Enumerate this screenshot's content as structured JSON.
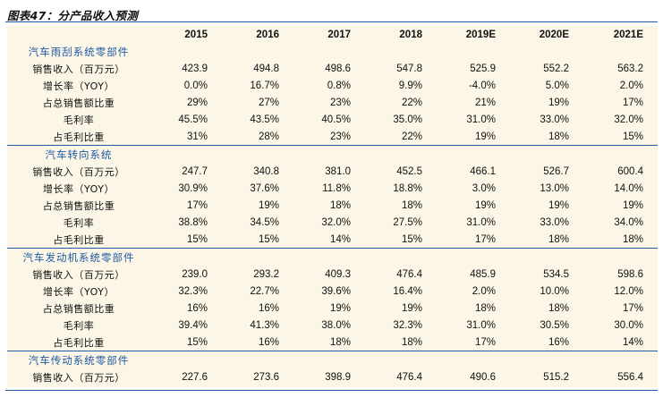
{
  "title": "图表47：分产品收入预测",
  "years": [
    "2015",
    "2016",
    "2017",
    "2018",
    "2019E",
    "2020E",
    "2021E"
  ],
  "sections": [
    {
      "name": "汽车雨刮系统零部件",
      "rows": [
        {
          "label": "销售收入（百万元）",
          "values": [
            "423.9",
            "494.8",
            "498.6",
            "547.8",
            "525.9",
            "552.2",
            "563.2"
          ]
        },
        {
          "label": "增长率（YOY）",
          "values": [
            "0.0%",
            "16.7%",
            "0.8%",
            "9.9%",
            "-4.0%",
            "5.0%",
            "2.0%"
          ]
        },
        {
          "label": "占总销售额比重",
          "values": [
            "29%",
            "27%",
            "23%",
            "22%",
            "21%",
            "19%",
            "17%"
          ]
        },
        {
          "label": "毛利率",
          "values": [
            "45.5%",
            "43.5%",
            "40.5%",
            "35.0%",
            "31.0%",
            "33.0%",
            "32.0%"
          ]
        },
        {
          "label": "占毛利比重",
          "values": [
            "31%",
            "28%",
            "23%",
            "22%",
            "19%",
            "18%",
            "15%"
          ]
        }
      ]
    },
    {
      "name": "汽车转向系统",
      "rows": [
        {
          "label": "销售收入（百万元）",
          "values": [
            "247.7",
            "340.8",
            "381.0",
            "452.5",
            "466.1",
            "526.7",
            "600.4"
          ]
        },
        {
          "label": "增长率（YOY）",
          "values": [
            "30.9%",
            "37.6%",
            "11.8%",
            "18.8%",
            "3.0%",
            "13.0%",
            "14.0%"
          ]
        },
        {
          "label": "占总销售额比重",
          "values": [
            "17%",
            "19%",
            "18%",
            "18%",
            "19%",
            "19%",
            "19%"
          ]
        },
        {
          "label": "毛利率",
          "values": [
            "38.8%",
            "34.5%",
            "32.0%",
            "27.5%",
            "31.0%",
            "33.0%",
            "34.0%"
          ]
        },
        {
          "label": "占毛利比重",
          "values": [
            "15%",
            "15%",
            "14%",
            "15%",
            "17%",
            "18%",
            "18%"
          ]
        }
      ]
    },
    {
      "name": "汽车发动机系统零部件",
      "rows": [
        {
          "label": "销售收入（百万元）",
          "values": [
            "239.0",
            "293.2",
            "409.3",
            "476.4",
            "485.9",
            "534.5",
            "598.6"
          ]
        },
        {
          "label": "增长率（YOY）",
          "values": [
            "32.3%",
            "22.7%",
            "39.6%",
            "16.4%",
            "2.0%",
            "10.0%",
            "12.0%"
          ]
        },
        {
          "label": "占总销售额比重",
          "values": [
            "16%",
            "16%",
            "19%",
            "19%",
            "18%",
            "18%",
            "17%"
          ]
        },
        {
          "label": "毛利率",
          "values": [
            "39.4%",
            "41.3%",
            "38.0%",
            "32.3%",
            "31.0%",
            "30.5%",
            "30.0%"
          ]
        },
        {
          "label": "占毛利比重",
          "values": [
            "15%",
            "16%",
            "18%",
            "18%",
            "17%",
            "16%",
            "14%"
          ]
        }
      ]
    },
    {
      "name": "汽车传动系统零部件",
      "rows": [
        {
          "label": "销售收入（百万元）",
          "values": [
            "227.6",
            "273.6",
            "398.9",
            "476.4",
            "490.6",
            "515.2",
            "556.4"
          ]
        }
      ]
    }
  ]
}
